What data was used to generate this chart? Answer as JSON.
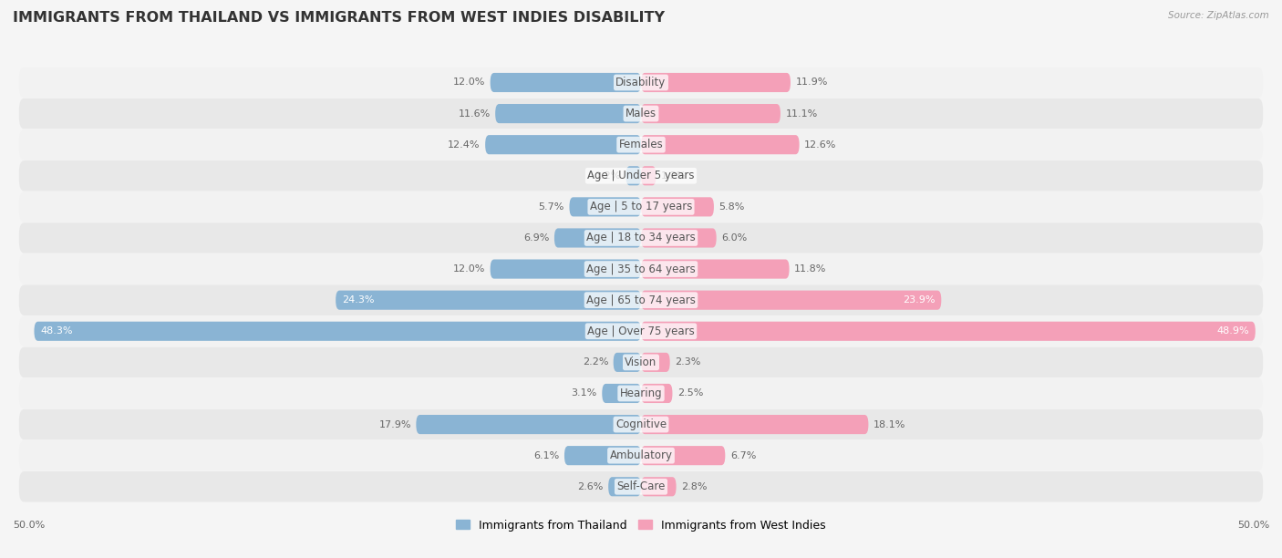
{
  "title": "IMMIGRANTS FROM THAILAND VS IMMIGRANTS FROM WEST INDIES DISABILITY",
  "source": "Source: ZipAtlas.com",
  "categories": [
    "Disability",
    "Males",
    "Females",
    "Age | Under 5 years",
    "Age | 5 to 17 years",
    "Age | 18 to 34 years",
    "Age | 35 to 64 years",
    "Age | 65 to 74 years",
    "Age | Over 75 years",
    "Vision",
    "Hearing",
    "Cognitive",
    "Ambulatory",
    "Self-Care"
  ],
  "thailand_values": [
    12.0,
    11.6,
    12.4,
    1.2,
    5.7,
    6.9,
    12.0,
    24.3,
    48.3,
    2.2,
    3.1,
    17.9,
    6.1,
    2.6
  ],
  "westindies_values": [
    11.9,
    11.1,
    12.6,
    1.2,
    5.8,
    6.0,
    11.8,
    23.9,
    48.9,
    2.3,
    2.5,
    18.1,
    6.7,
    2.8
  ],
  "thailand_color": "#8ab4d4",
  "westindies_color": "#f4a0b8",
  "row_bg_even": "#f2f2f2",
  "row_bg_odd": "#e8e8e8",
  "fig_bg": "#f5f5f5",
  "max_value": 50.0,
  "legend_thailand": "Immigrants from Thailand",
  "legend_westindies": "Immigrants from West Indies",
  "title_fontsize": 11.5,
  "label_fontsize": 8.5,
  "value_fontsize": 8.0
}
